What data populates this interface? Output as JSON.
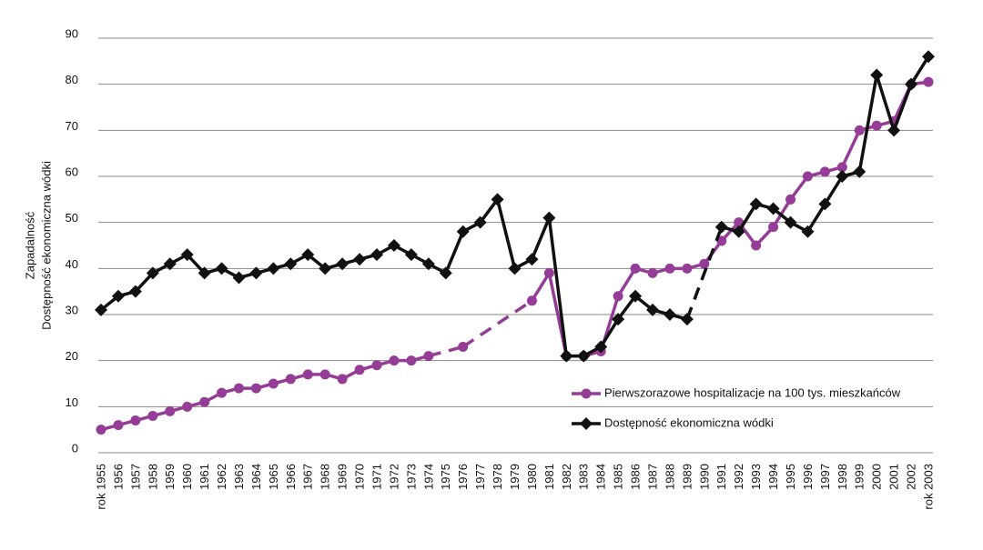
{
  "chart_data": {
    "type": "line",
    "y_label": [
      "Zapadalność",
      "Dostępność ekonomiczna wódki"
    ],
    "categories": [
      "rok 1955",
      "1956",
      "1957",
      "1958",
      "1959",
      "1960",
      "1961",
      "1962",
      "1963",
      "1964",
      "1965",
      "1966",
      "1967",
      "1968",
      "1969",
      "1970",
      "1971",
      "1972",
      "1973",
      "1974",
      "1975",
      "1976",
      "1977",
      "1978",
      "1979",
      "1980",
      "1981",
      "1982",
      "1983",
      "1984",
      "1985",
      "1986",
      "1987",
      "1988",
      "1989",
      "1990",
      "1991",
      "1992",
      "1993",
      "1994",
      "1995",
      "1996",
      "1997",
      "1998",
      "1999",
      "2000",
      "2001",
      "2002",
      "rok 2003"
    ],
    "series": [
      {
        "name": "Pierwszorazowe hospitalizacje na 100 tys. mieszkańców",
        "color": "#953d96",
        "marker": "circle",
        "values": [
          5,
          6,
          7,
          8,
          9,
          10,
          11,
          13,
          14,
          14,
          15,
          16,
          17,
          17,
          16,
          18,
          19,
          20,
          20,
          21,
          null,
          23,
          null,
          null,
          null,
          33,
          39,
          21,
          21,
          22,
          34,
          40,
          39,
          40,
          40,
          41,
          46,
          50,
          45,
          49,
          55,
          60,
          61,
          62,
          70,
          71,
          72,
          80,
          80.5
        ]
      },
      {
        "name": "Dostępność ekonomiczna wódki",
        "color": "#111111",
        "marker": "diamond",
        "values": [
          31,
          34,
          35,
          39,
          41,
          43,
          39,
          40,
          38,
          39,
          40,
          41,
          43,
          40,
          41,
          42,
          43,
          45,
          43,
          41,
          39,
          48,
          50,
          55,
          40,
          42,
          51,
          21,
          21,
          23,
          29,
          34,
          31,
          30,
          29,
          null,
          49,
          48,
          54,
          53,
          50,
          48,
          54,
          60,
          61,
          82,
          70,
          80,
          86
        ]
      }
    ],
    "ylim": [
      0,
      90
    ],
    "yticks": [
      0,
      10,
      20,
      30,
      40,
      50,
      60,
      70,
      80,
      90
    ],
    "grid": true,
    "gaps": "dashed",
    "legend": "lower right"
  }
}
